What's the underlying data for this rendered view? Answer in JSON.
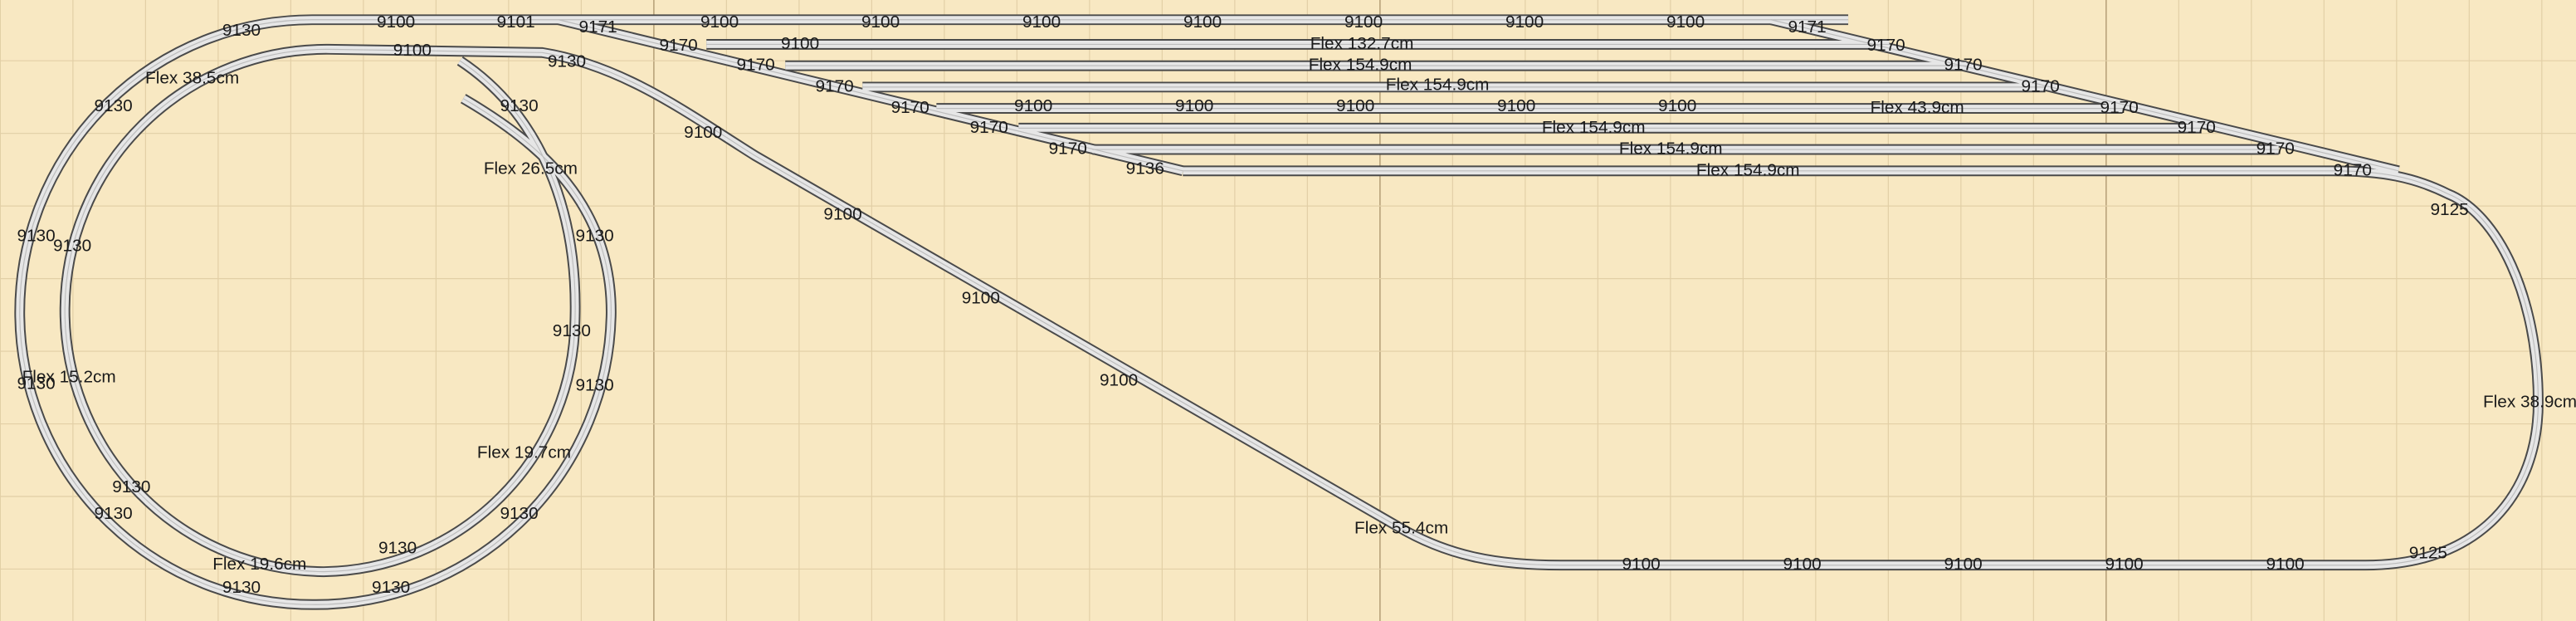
{
  "labels": [
    "9130",
    "9100",
    "9101",
    "9171",
    "9100",
    "9100",
    "9100",
    "9100",
    "9100",
    "9100",
    "9100",
    "9171",
    "9100",
    "9130",
    "9170",
    "9100",
    "Flex 132.7cm",
    "9170",
    "Flex 38.5cm",
    "9170",
    "Flex 154.9cm",
    "9170",
    "9170",
    "Flex 154.9cm",
    "9170",
    "9130",
    "9130",
    "9170",
    "9100",
    "9100",
    "9100",
    "9100",
    "9100",
    "Flex 43.9cm",
    "9170",
    "9170",
    "Flex 154.9cm",
    "9170",
    "9100",
    "9170",
    "Flex 154.9cm",
    "9170",
    "9136",
    "Flex 154.9cm",
    "9170",
    "Flex 26.5cm",
    "9125",
    "9100",
    "9130",
    "9130",
    "9130",
    "9100",
    "9130",
    "Flex 15.2cm",
    "9130",
    "9100",
    "9130",
    "Flex 38.9cm",
    "Flex 19.7cm",
    "9130",
    "9130",
    "9130",
    "Flex 55.4cm",
    "9125",
    "9130",
    "Flex 19.6cm",
    "9100",
    "9100",
    "9100",
    "9100",
    "9100",
    "9130",
    "9130"
  ]
}
